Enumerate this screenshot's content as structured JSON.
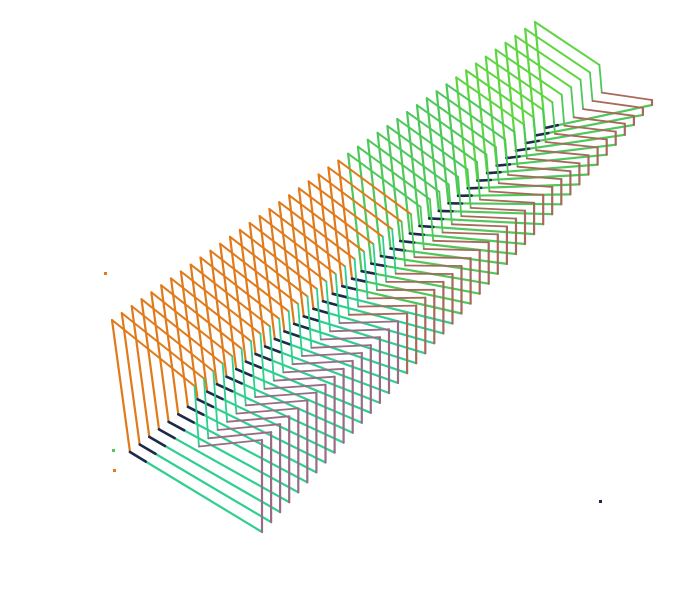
{
  "scene": {
    "frame_count": 44,
    "colors": {
      "background": "#ffffff",
      "orange": "#e07a1a",
      "green": "#4ec85a",
      "mint": "#2ecf8f",
      "purple": "#9a6a86",
      "brown": "#a8685a",
      "dark_navy": "#1e2a4a",
      "bright_green": "#5ed642"
    }
  }
}
